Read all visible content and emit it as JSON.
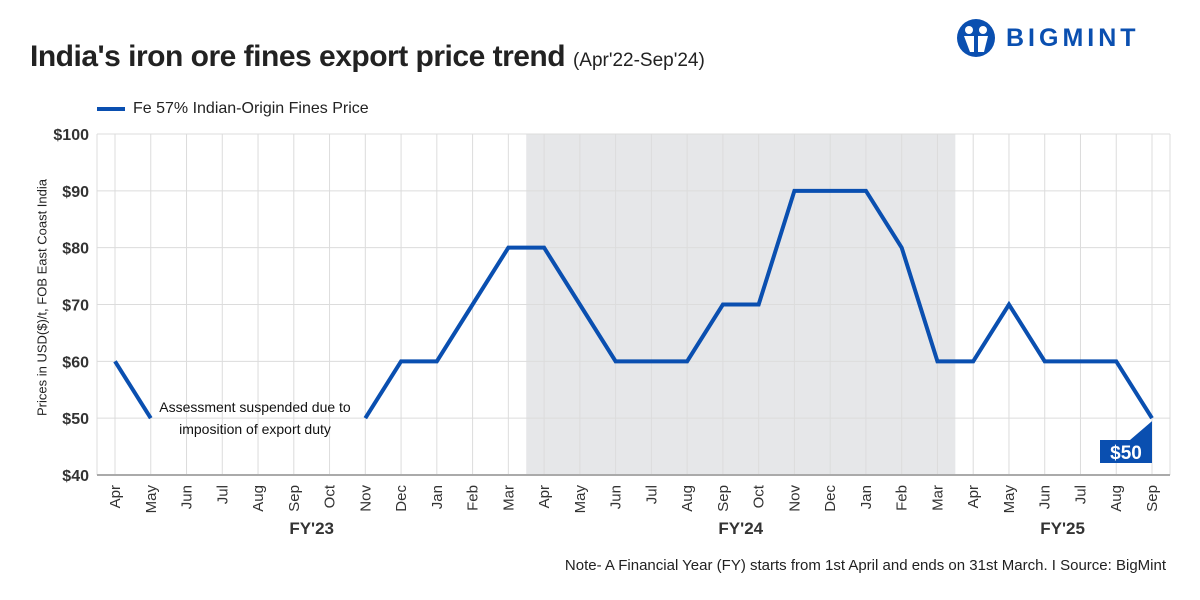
{
  "title": "India's iron ore fines export price trend",
  "subtitle": "(Apr'22-Sep'24)",
  "brand": "BIGMINT",
  "note": "Note- A Financial Year (FY) starts from 1st April and ends on 31st March. I  Source: BigMint",
  "chart_data": {
    "type": "line",
    "ylabel": "Prices in USD($)/t, FOB East Coast India",
    "ylim": [
      40,
      100
    ],
    "yticks": [
      "$40",
      "$50",
      "$60",
      "$70",
      "$80",
      "$90",
      "$100"
    ],
    "ytick_values": [
      40,
      50,
      60,
      70,
      80,
      90,
      100
    ],
    "categories": [
      "Apr",
      "May",
      "Jun",
      "Jul",
      "Aug",
      "Sep",
      "Oct",
      "Nov",
      "Dec",
      "Jan",
      "Feb",
      "Mar",
      "Apr",
      "May",
      "Jun",
      "Jul",
      "Aug",
      "Sep",
      "Oct",
      "Nov",
      "Dec",
      "Jan",
      "Feb",
      "Mar",
      "Apr",
      "May",
      "Jun",
      "Jul",
      "Aug",
      "Sep"
    ],
    "groups": [
      {
        "label": "FY'23",
        "start": 0,
        "end": 11,
        "shaded": false
      },
      {
        "label": "FY'24",
        "start": 12,
        "end": 23,
        "shaded": true
      },
      {
        "label": "FY'25",
        "start": 24,
        "end": 29,
        "shaded": false
      }
    ],
    "series": [
      {
        "name": "Fe 57% Indian-Origin Fines Price",
        "color": "#0a4fb0",
        "values": [
          60,
          50,
          null,
          null,
          null,
          null,
          null,
          50,
          60,
          60,
          70,
          80,
          80,
          70,
          60,
          60,
          60,
          70,
          70,
          90,
          90,
          90,
          80,
          60,
          60,
          70,
          60,
          60,
          60,
          50
        ]
      }
    ],
    "annotations": [
      {
        "text": "Assessment suspended due to imposition of export duty",
        "lines": [
          "Assessment suspended due to",
          "imposition of export duty"
        ]
      },
      {
        "text": "$50",
        "at_index": 29
      }
    ],
    "grid": true,
    "legend": "top-left"
  }
}
